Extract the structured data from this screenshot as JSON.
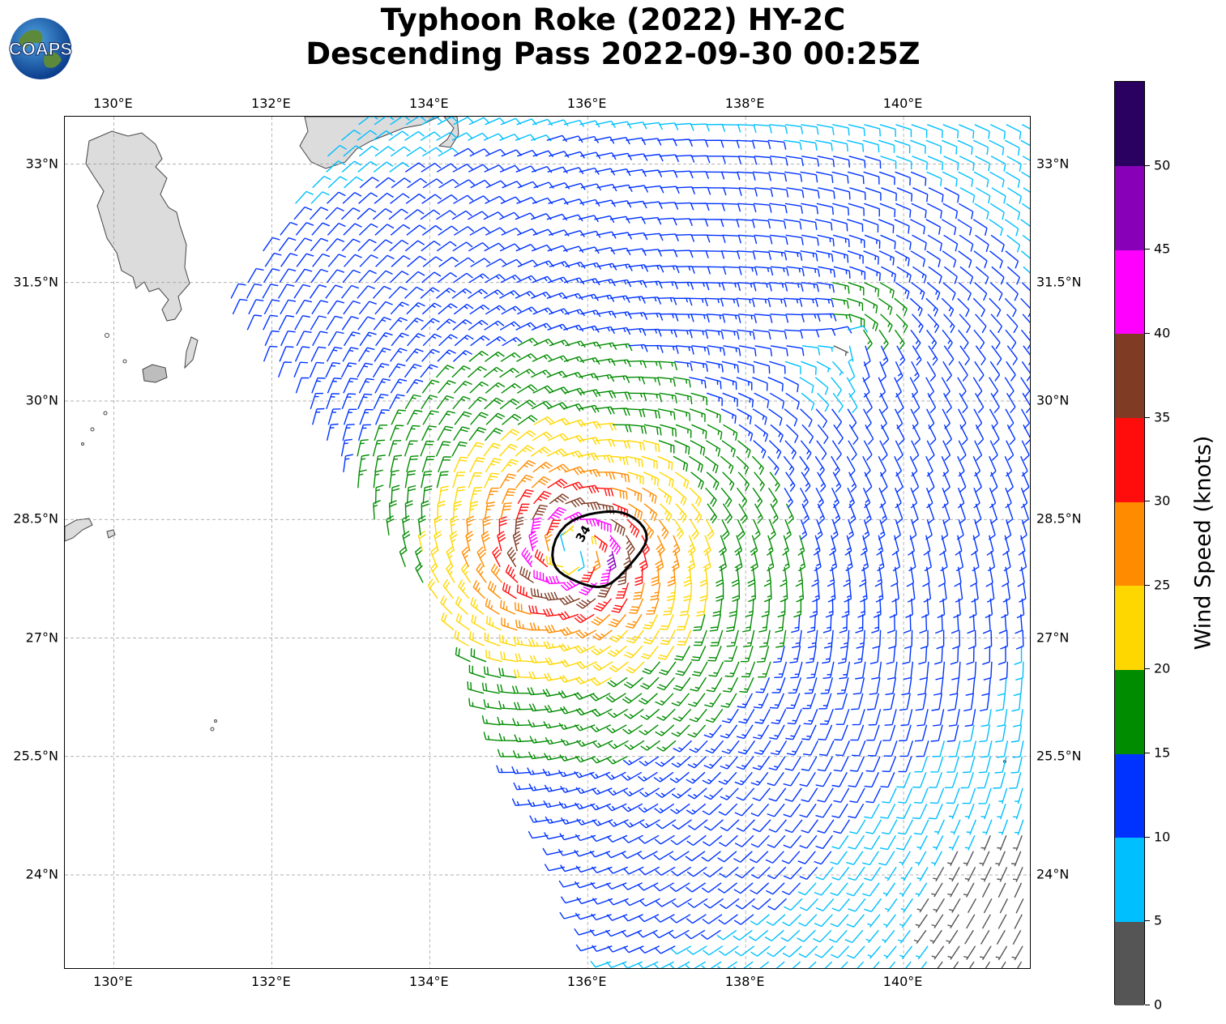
{
  "header": {
    "title_line1": "Typhoon Roke (2022) HY-2C",
    "title_line2": "Descending Pass 2022-09-30 00:25Z",
    "logo_text": "COAPS"
  },
  "map": {
    "lon_ticks": [
      "130°E",
      "132°E",
      "134°E",
      "136°E",
      "138°E",
      "140°E"
    ],
    "lat_ticks": [
      "33°N",
      "31.5°N",
      "30°N",
      "28.5°N",
      "27°N",
      "25.5°N",
      "24°N"
    ],
    "lon_values": [
      130,
      132,
      134,
      136,
      138,
      140
    ],
    "lat_values": [
      33,
      31.5,
      30,
      28.5,
      27,
      25.5,
      24
    ],
    "lon_range": [
      129.38,
      141.62
    ],
    "lat_range": [
      22.8,
      33.6
    ],
    "storm_center": {
      "lon": 135.8,
      "lat": 28.1
    },
    "contour_label": "34",
    "contour_value_knots": 34,
    "land_color": "#d9d9d9"
  },
  "colorbar": {
    "label": "Wind Speed (knots)",
    "ticks": [
      "0",
      "5",
      "10",
      "15",
      "20",
      "25",
      "30",
      "35",
      "40",
      "45",
      "50"
    ],
    "bins": [
      {
        "min": 0,
        "max": 5,
        "color": "#555555"
      },
      {
        "min": 5,
        "max": 10,
        "color": "#00bfff"
      },
      {
        "min": 10,
        "max": 15,
        "color": "#0033ff"
      },
      {
        "min": 15,
        "max": 20,
        "color": "#008c00"
      },
      {
        "min": 20,
        "max": 25,
        "color": "#ffd700"
      },
      {
        "min": 25,
        "max": 30,
        "color": "#ff8c00"
      },
      {
        "min": 30,
        "max": 35,
        "color": "#ff0d0d"
      },
      {
        "min": 35,
        "max": 40,
        "color": "#7f3b24"
      },
      {
        "min": 40,
        "max": 45,
        "color": "#ff00ff"
      },
      {
        "min": 45,
        "max": 50,
        "color": "#8800b8"
      },
      {
        "min": 50,
        "max": 55,
        "color": "#2a0060"
      }
    ]
  }
}
